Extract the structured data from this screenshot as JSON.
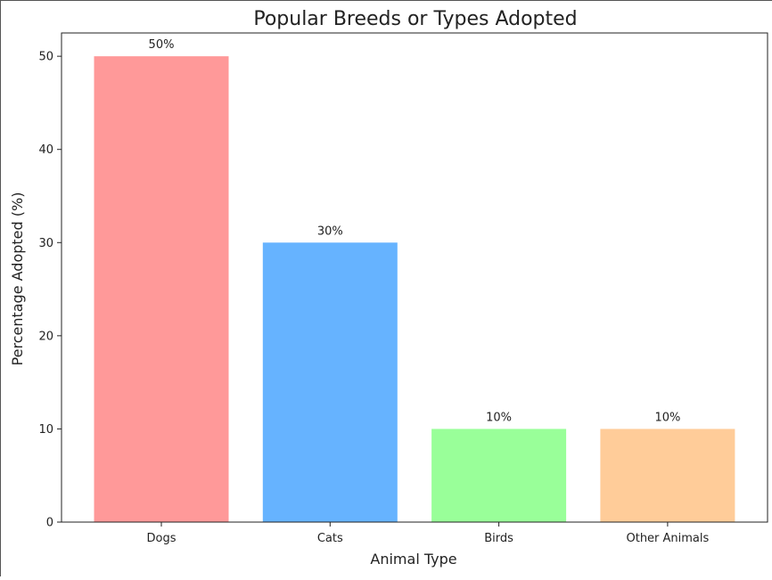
{
  "chart_data": {
    "type": "bar",
    "title": "Popular Breeds or Types Adopted",
    "xlabel": "Animal Type",
    "ylabel": "Percentage Adopted (%)",
    "categories": [
      "Dogs",
      "Cats",
      "Birds",
      "Other Animals"
    ],
    "values": [
      50,
      30,
      10,
      10
    ],
    "value_labels": [
      "50%",
      "30%",
      "10%",
      "10%"
    ],
    "colors": [
      "#ff9999",
      "#66b3ff",
      "#99ff99",
      "#ffcc99"
    ],
    "yticks": [
      0,
      10,
      20,
      30,
      40,
      50
    ],
    "ylim": [
      0,
      52.5
    ],
    "grid": false,
    "legend": false
  }
}
